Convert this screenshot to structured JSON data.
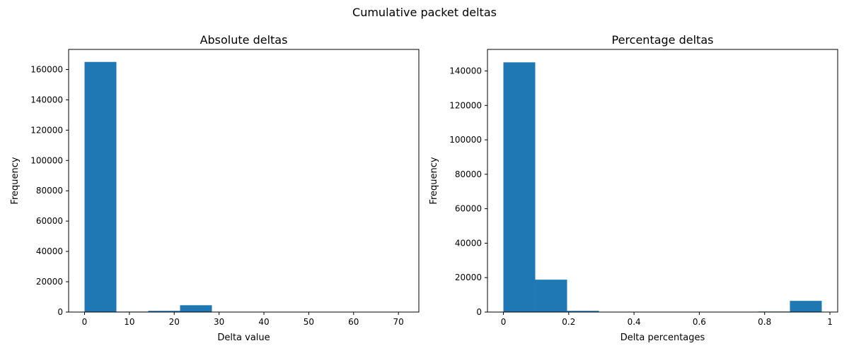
{
  "figure": {
    "suptitle": "Cumulative packet deltas"
  },
  "colors": {
    "bar": "#1f77b4",
    "axis": "#000000"
  },
  "chart_data": [
    {
      "type": "bar",
      "subtype": "histogram",
      "title": "Absolute deltas",
      "xlabel": "Delta value",
      "ylabel": "Frequency",
      "xlim": [
        -3.55,
        74.55
      ],
      "ylim": [
        0,
        173250
      ],
      "xticks": [
        0,
        10,
        20,
        30,
        40,
        50,
        60,
        70
      ],
      "yticks": [
        0,
        20000,
        40000,
        60000,
        80000,
        100000,
        120000,
        140000,
        160000
      ],
      "bin_edges": [
        0,
        7.1,
        14.2,
        21.3,
        28.4,
        35.5,
        42.6,
        49.7,
        56.8,
        63.9,
        71
      ],
      "values": [
        165000,
        300,
        800,
        4500,
        200,
        100,
        0,
        0,
        0,
        50
      ]
    },
    {
      "type": "bar",
      "subtype": "histogram",
      "title": "Percentage deltas",
      "xlabel": "Delta percentages",
      "ylabel": "Frequency",
      "xlim": [
        -0.0488,
        1.0238
      ],
      "ylim": [
        0,
        152500
      ],
      "xticks": [
        0.0,
        0.2,
        0.4,
        0.6,
        0.8,
        1.0
      ],
      "yticks": [
        0,
        20000,
        40000,
        60000,
        80000,
        100000,
        120000,
        140000
      ],
      "bin_edges": [
        0,
        0.0975,
        0.195,
        0.2925,
        0.39,
        0.4875,
        0.585,
        0.6825,
        0.78,
        0.8775,
        0.975
      ],
      "values": [
        145000,
        18800,
        700,
        100,
        50,
        30,
        20,
        30,
        300,
        6500
      ]
    }
  ]
}
